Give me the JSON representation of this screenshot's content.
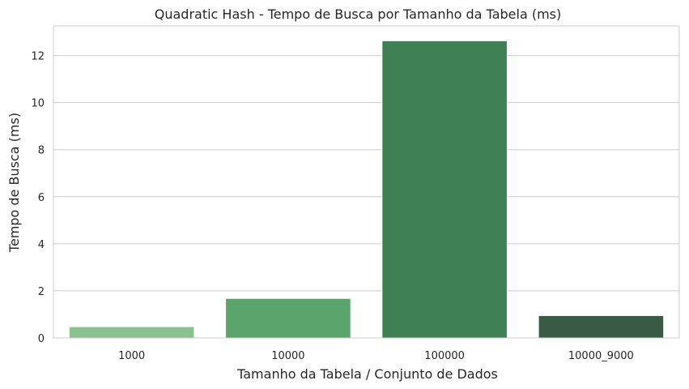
{
  "chart_data": {
    "type": "bar",
    "title": "Quadratic Hash - Tempo de Busca por Tamanho da Tabela (ms)",
    "xlabel": "Tamanho da Tabela / Conjunto de Dados",
    "ylabel": "Tempo de Busca (ms)",
    "categories": [
      "1000",
      "10000",
      "100000",
      "10000_9000"
    ],
    "values": [
      0.48,
      1.68,
      12.63,
      0.95
    ],
    "colors": [
      "#8bc18f",
      "#5aa46c",
      "#3f8154",
      "#3a5b43"
    ],
    "ylim": [
      0,
      13.26
    ],
    "yticks": [
      0,
      2,
      4,
      6,
      8,
      10,
      12
    ],
    "grid": "horizontal",
    "gridColor": "#cccccc",
    "spineColor": "#cccccc"
  }
}
